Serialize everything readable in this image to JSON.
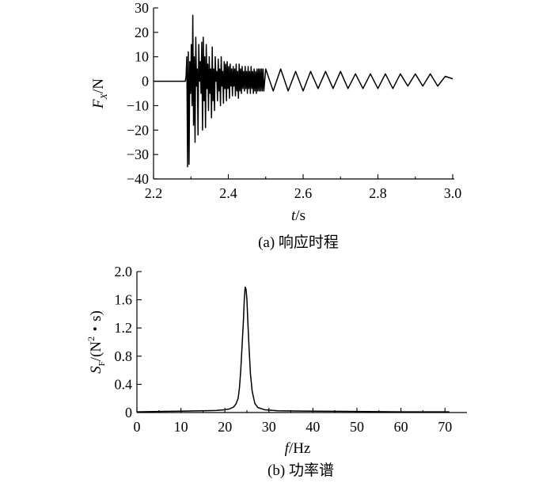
{
  "chart_data": [
    {
      "type": "line",
      "caption": "(a) 响应时程",
      "xlabel_italic": "t",
      "xlabel_rest": "/s",
      "ylabel_main": "F",
      "ylabel_sub": "X",
      "ylabel_rest": "/N",
      "xlim": [
        2.2,
        3.0
      ],
      "ylim": [
        -40,
        30
      ],
      "xticks": [
        2.2,
        2.4,
        2.6,
        2.8,
        3.0
      ],
      "xtick_labels": [
        "2.2",
        "2.4",
        "2.6",
        "2.8",
        "3.0"
      ],
      "yticks": [
        -40,
        -30,
        -20,
        -10,
        0,
        10,
        20,
        30
      ],
      "ytick_labels": [
        "−40",
        "−30",
        "−20",
        "−10",
        "0",
        "10",
        "20",
        "30"
      ],
      "grid": false,
      "series": [
        {
          "x": [
            2.2,
            2.225,
            2.25,
            2.27,
            2.285,
            2.287,
            2.289,
            2.291,
            2.293,
            2.295,
            2.297,
            2.299,
            2.301,
            2.303,
            2.305,
            2.307,
            2.309,
            2.311,
            2.313,
            2.315,
            2.317,
            2.319,
            2.321,
            2.323,
            2.325,
            2.327,
            2.329,
            2.331,
            2.333,
            2.335,
            2.337,
            2.339,
            2.341,
            2.343,
            2.345,
            2.347,
            2.349,
            2.351,
            2.353,
            2.355,
            2.357,
            2.359,
            2.361,
            2.363,
            2.365,
            2.367,
            2.369,
            2.371,
            2.373,
            2.375,
            2.377,
            2.379,
            2.381,
            2.383,
            2.385,
            2.387,
            2.389,
            2.391,
            2.393,
            2.395,
            2.397,
            2.399,
            2.401,
            2.403,
            2.405,
            2.407,
            2.409,
            2.411,
            2.413,
            2.415,
            2.417,
            2.419,
            2.421,
            2.423,
            2.425,
            2.427,
            2.429,
            2.431,
            2.433,
            2.435,
            2.437,
            2.439,
            2.441,
            2.443,
            2.445,
            2.447,
            2.449,
            2.451,
            2.453,
            2.455,
            2.457,
            2.459,
            2.461,
            2.463,
            2.465,
            2.467,
            2.469,
            2.471,
            2.473,
            2.475,
            2.477,
            2.479,
            2.481,
            2.483,
            2.485,
            2.487,
            2.489,
            2.491,
            2.493,
            2.495,
            2.5,
            2.52,
            2.54,
            2.56,
            2.58,
            2.6,
            2.62,
            2.64,
            2.66,
            2.68,
            2.7,
            2.72,
            2.74,
            2.76,
            2.78,
            2.8,
            2.82,
            2.84,
            2.86,
            2.88,
            2.9,
            2.92,
            2.94,
            2.96,
            2.98,
            3.0
          ],
          "y": [
            0,
            0,
            0,
            0,
            0,
            2,
            10,
            -35,
            12,
            -34,
            8,
            -5,
            15,
            -10,
            27,
            -18,
            10,
            -25,
            18,
            -2,
            5,
            -22,
            15,
            0,
            8,
            -5,
            16,
            -20,
            18,
            -8,
            10,
            -19,
            15,
            -3,
            7,
            -12,
            10,
            -5,
            5,
            -15,
            14,
            -8,
            5,
            -12,
            10,
            0,
            4,
            -8,
            9,
            -4,
            5,
            -10,
            10,
            -2,
            4,
            -9,
            8,
            -3,
            7,
            -8,
            8,
            -3,
            6,
            -7,
            7,
            -2,
            5,
            -6,
            6,
            -2,
            5,
            -6,
            7,
            -4,
            4,
            -7,
            7,
            -4,
            5,
            -5,
            6,
            -3,
            4,
            -4,
            6,
            -3,
            4,
            -5,
            6,
            -3,
            4,
            -5,
            6,
            -3,
            4,
            -5,
            5,
            -4,
            4,
            -5,
            5,
            -4,
            5,
            -4,
            5,
            -4,
            5,
            -4,
            5,
            -4,
            5,
            -4,
            5,
            -4,
            4,
            -4,
            4,
            -3,
            4,
            -3,
            4,
            -3,
            3,
            -3,
            3,
            -3,
            3,
            -3,
            3,
            -2,
            3,
            -2,
            3,
            -2,
            2,
            1
          ]
        }
      ]
    },
    {
      "type": "line",
      "caption": "(b) 功率谱",
      "xlabel_italic": "f",
      "xlabel_rest": "/Hz",
      "ylabel_main": "S",
      "ylabel_sub": "F",
      "ylabel_rest": "/(N",
      "ylabel_sup": "2",
      "ylabel_tail": "・s)",
      "xlim": [
        0,
        75
      ],
      "ylim": [
        0,
        2.0
      ],
      "xticks": [
        0,
        10,
        20,
        30,
        40,
        50,
        60,
        70
      ],
      "xtick_labels": [
        "0",
        "10",
        "20",
        "30",
        "40",
        "50",
        "60",
        "70"
      ],
      "yticks": [
        0,
        0.4,
        0.8,
        1.2,
        1.6,
        2.0
      ],
      "ytick_labels": [
        "0",
        "0.4",
        "0.8",
        "1.2",
        "1.6",
        "2.0"
      ],
      "grid": false,
      "series": [
        {
          "x": [
            0,
            5,
            10,
            15,
            18,
            20,
            21,
            22,
            22.5,
            23,
            23.3,
            23.6,
            23.9,
            24.2,
            24.4,
            24.6,
            24.8,
            25.0,
            25.2,
            25.5,
            25.8,
            26.2,
            26.8,
            27.5,
            29,
            32,
            40,
            50,
            60,
            70,
            71
          ],
          "y": [
            0.01,
            0.015,
            0.02,
            0.025,
            0.03,
            0.04,
            0.05,
            0.08,
            0.12,
            0.2,
            0.35,
            0.6,
            0.95,
            1.3,
            1.6,
            1.78,
            1.75,
            1.6,
            1.3,
            0.9,
            0.55,
            0.3,
            0.13,
            0.07,
            0.04,
            0.025,
            0.02,
            0.015,
            0.01,
            0.01,
            0.01
          ]
        }
      ]
    }
  ]
}
